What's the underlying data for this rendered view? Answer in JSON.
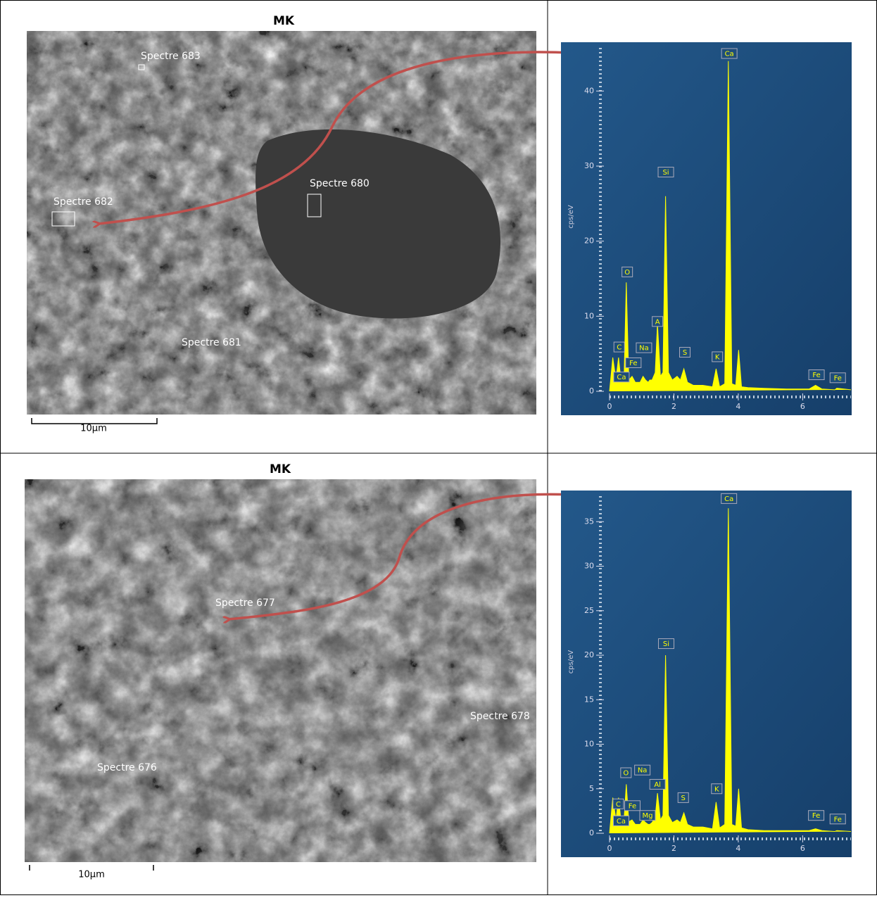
{
  "panels": [
    {
      "title": "MK",
      "labels": [
        "Spectre 683",
        "Spectre 680",
        "Spectre 682",
        "Spectre 681"
      ],
      "scale_bar": "10µm"
    },
    {
      "title": "MK",
      "labels": [
        "Spectre 677",
        "Spectre 678",
        "Spectre 676"
      ],
      "scale_bar": "10µm"
    }
  ],
  "chart_data": [
    {
      "type": "line",
      "ylabel": "cps/eV",
      "color": "#ffff00",
      "x": [
        0.0,
        0.1,
        0.2,
        0.28,
        0.36,
        0.45,
        0.52,
        0.6,
        0.7,
        0.8,
        0.95,
        1.04,
        1.12,
        1.2,
        1.25,
        1.32,
        1.42,
        1.49,
        1.58,
        1.66,
        1.74,
        1.83,
        1.95,
        2.1,
        2.2,
        2.31,
        2.42,
        2.6,
        2.9,
        3.2,
        3.31,
        3.42,
        3.58,
        3.69,
        3.8,
        3.92,
        4.01,
        4.1,
        4.3,
        4.8,
        5.5,
        6.2,
        6.4,
        6.6,
        7.0,
        7.06,
        7.5
      ],
      "values": [
        0,
        4.5,
        1.5,
        4.5,
        1.2,
        1.5,
        14.5,
        1.5,
        2,
        1.2,
        1.2,
        2,
        1.5,
        1.2,
        1.5,
        1.5,
        2.5,
        9,
        2,
        2.5,
        26,
        2.5,
        1.5,
        2,
        1.5,
        3,
        1.2,
        0.8,
        0.8,
        0.6,
        3,
        0.6,
        1,
        44,
        1,
        0.8,
        5.5,
        0.6,
        0.5,
        0.4,
        0.3,
        0.3,
        0.8,
        0.3,
        0.2,
        0.4,
        0.2
      ],
      "xlim": [
        0,
        7.5
      ],
      "xticks": [
        0,
        2,
        4,
        6
      ],
      "ylim": [
        0,
        46.5
      ],
      "yticks": [
        0,
        10,
        20,
        30,
        40
      ],
      "annotations": [
        {
          "text": "C",
          "x": 0.3,
          "y": 5.9
        },
        {
          "text": "Ca",
          "x": 0.37,
          "y": 1.9
        },
        {
          "text": "O",
          "x": 0.55,
          "y": 15.9
        },
        {
          "text": "Fe",
          "x": 0.74,
          "y": 3.8
        },
        {
          "text": "Na",
          "x": 1.07,
          "y": 5.8
        },
        {
          "text": "A",
          "x": 1.49,
          "y": 9.3
        },
        {
          "text": "Si",
          "x": 1.75,
          "y": 29.2
        },
        {
          "text": "S",
          "x": 2.34,
          "y": 5.2
        },
        {
          "text": "K",
          "x": 3.35,
          "y": 4.6
        },
        {
          "text": "Ca",
          "x": 3.72,
          "y": 45
        },
        {
          "text": "Fe",
          "x": 6.43,
          "y": 2.2
        },
        {
          "text": "Fe",
          "x": 7.09,
          "y": 1.8
        }
      ]
    },
    {
      "type": "line",
      "ylabel": "cps/eV",
      "color": "#ffff00",
      "x": [
        0.0,
        0.1,
        0.2,
        0.28,
        0.36,
        0.45,
        0.52,
        0.6,
        0.7,
        0.8,
        0.95,
        1.04,
        1.12,
        1.2,
        1.25,
        1.32,
        1.42,
        1.49,
        1.58,
        1.66,
        1.74,
        1.83,
        1.95,
        2.1,
        2.2,
        2.31,
        2.42,
        2.6,
        2.9,
        3.2,
        3.31,
        3.42,
        3.58,
        3.69,
        3.8,
        3.92,
        4.01,
        4.1,
        4.3,
        4.8,
        5.5,
        6.2,
        6.4,
        6.6,
        7.0,
        7.06,
        7.5
      ],
      "values": [
        0,
        4,
        1.5,
        4,
        1.2,
        1.5,
        5.5,
        1.3,
        1.5,
        1,
        1,
        1.5,
        1.2,
        1,
        1,
        1.2,
        1.8,
        4.5,
        1.5,
        2,
        20,
        2,
        1.2,
        1.5,
        1.2,
        2.3,
        1,
        0.7,
        0.7,
        0.5,
        3.5,
        0.6,
        1,
        36.5,
        1,
        0.8,
        5,
        0.6,
        0.4,
        0.3,
        0.3,
        0.3,
        0.5,
        0.3,
        0.2,
        0.3,
        0.2
      ],
      "xlim": [
        0,
        7.5
      ],
      "xticks": [
        0,
        2,
        4,
        6
      ],
      "ylim": [
        0,
        38.5
      ],
      "yticks": [
        0,
        5,
        10,
        15,
        20,
        25,
        30,
        35
      ],
      "annotations": [
        {
          "text": "C",
          "x": 0.27,
          "y": 3.3
        },
        {
          "text": "Ca",
          "x": 0.36,
          "y": 1.4
        },
        {
          "text": "O",
          "x": 0.51,
          "y": 6.8
        },
        {
          "text": "Na",
          "x": 1.02,
          "y": 7.1
        },
        {
          "text": "Fe",
          "x": 0.71,
          "y": 3.1
        },
        {
          "text": "Mg",
          "x": 1.18,
          "y": 2.0
        },
        {
          "text": "Al",
          "x": 1.49,
          "y": 5.5
        },
        {
          "text": "Si",
          "x": 1.76,
          "y": 21.3
        },
        {
          "text": "S",
          "x": 2.29,
          "y": 4.0
        },
        {
          "text": "K",
          "x": 3.33,
          "y": 5.0
        },
        {
          "text": "Ca",
          "x": 3.71,
          "y": 37.6
        },
        {
          "text": "Fe",
          "x": 6.42,
          "y": 2.0
        },
        {
          "text": "Fe",
          "x": 7.09,
          "y": 1.6
        }
      ]
    }
  ]
}
